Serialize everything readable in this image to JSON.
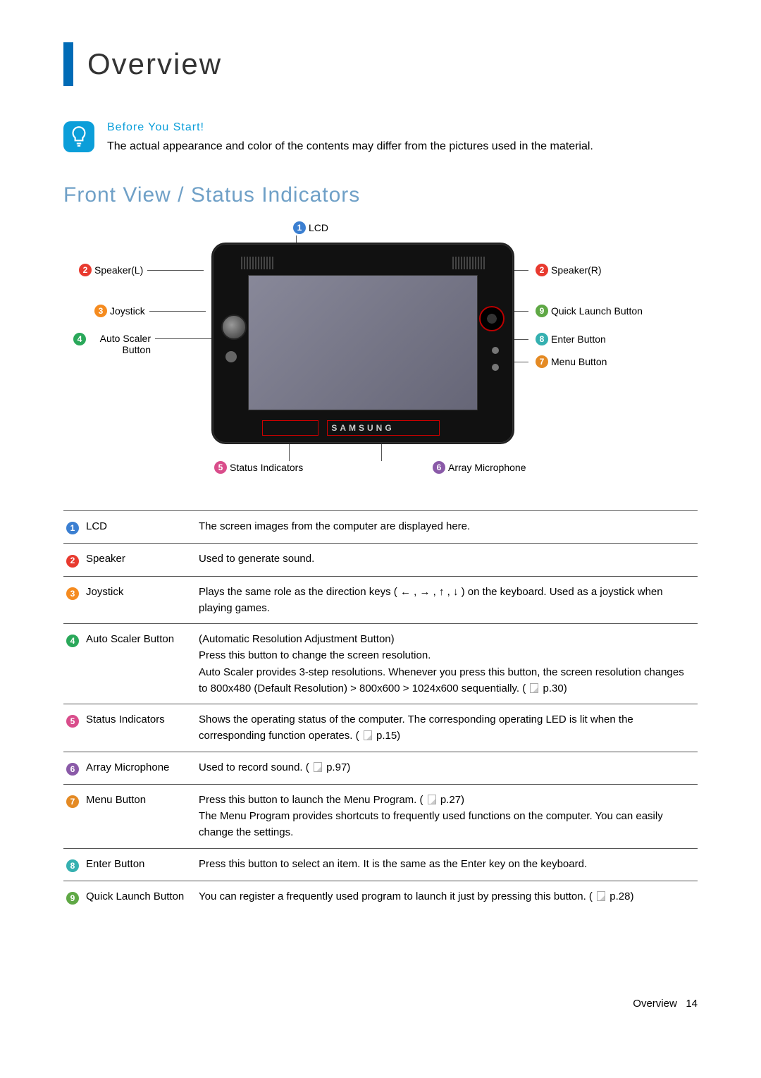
{
  "colors": {
    "accent_bar": "#006bb6",
    "tip_bg": "#0b9ed9",
    "section_title": "#6fa0c7",
    "table_border": "#555555",
    "callout_line": "#555555",
    "highlight_box": "#c00000",
    "n1": "#3b7fd1",
    "n2": "#e83a2f",
    "n3": "#f58b1f",
    "n4": "#2aa85a",
    "n5": "#d94d8b",
    "n6": "#8a5aa8",
    "n7": "#e48a24",
    "n8": "#35b0b0",
    "n9": "#5fa845"
  },
  "title": "Overview",
  "tip": {
    "head": "Before You Start!",
    "body": "The actual appearance and color of the contents may differ from the pictures used in the material."
  },
  "section": "Front View / Status Indicators",
  "brand": "SAMSUNG",
  "callouts": {
    "lcd": "LCD",
    "speaker_l": "Speaker(L)",
    "speaker_r": "Speaker(R)",
    "joystick": "Joystick",
    "auto_scaler": "Auto Scaler Button",
    "quick_launch": "Quick Launch Button",
    "enter": "Enter Button",
    "menu": "Menu Button",
    "status": "Status Indicators",
    "array_mic": "Array Microphone"
  },
  "rows": [
    {
      "n": "1",
      "c": "#3b7fd1",
      "label": "LCD",
      "desc": "The screen images from the computer are displayed here."
    },
    {
      "n": "2",
      "c": "#e83a2f",
      "label": "Speaker",
      "desc": "Used to generate sound."
    },
    {
      "n": "3",
      "c": "#f58b1f",
      "label": "Joystick",
      "desc": "Plays the same role as the direction keys ( ← , → , ↑ , ↓ ) on the keyboard. Used as a joystick when playing games."
    },
    {
      "n": "4",
      "c": "#2aa85a",
      "label": "Auto Scaler Button",
      "desc": "(Automatic Resolution Adjustment Button)\nPress this button to change the screen resolution.\nAuto Scaler provides 3-step resolutions. Whenever you press this button, the screen resolution changes to 800x480 (Default Resolution) > 800x600 > 1024x600 sequentially. ( 📄 p.30)"
    },
    {
      "n": "5",
      "c": "#d94d8b",
      "label": "Status Indicators",
      "desc": "Shows the operating status of the computer. The corresponding operating LED is lit when the corresponding function operates. ( 📄 p.15)"
    },
    {
      "n": "6",
      "c": "#8a5aa8",
      "label": "Array Microphone",
      "desc": "Used to record sound. ( 📄 p.97)"
    },
    {
      "n": "7",
      "c": "#e48a24",
      "label": "Menu Button",
      "desc": "Press this button to launch the Menu Program. ( 📄 p.27)\nThe Menu Program provides shortcuts to frequently used functions on the computer. You can easily change the settings."
    },
    {
      "n": "8",
      "c": "#35b0b0",
      "label": "Enter Button",
      "desc": "Press this button to select an item. It is the same as the Enter key on the keyboard."
    },
    {
      "n": "9",
      "c": "#5fa845",
      "label": "Quick Launch Button",
      "desc": "You can register a frequently used program to launch it just by pressing this button. ( 📄 p.28)"
    }
  ],
  "footer": {
    "label": "Overview",
    "page": "14"
  }
}
